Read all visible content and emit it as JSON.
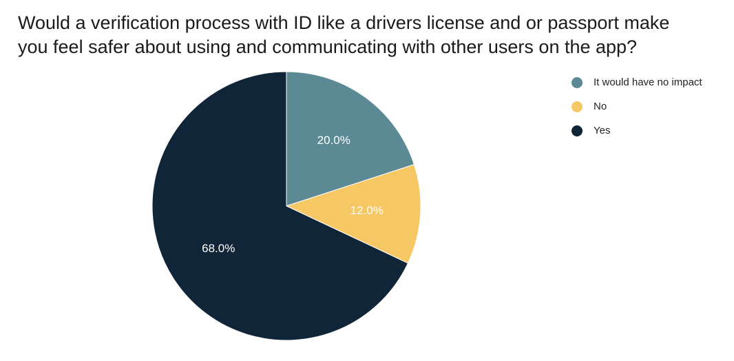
{
  "chart_data": {
    "type": "pie",
    "title_lines": [
      "Would a verification process with ID like a drivers license and or passport make",
      "you feel safer about using and communicating with other users on the app?"
    ],
    "slices": [
      {
        "label": "It would have no impact",
        "value": 20.0,
        "display": "20.0%",
        "color": "#5b8a95"
      },
      {
        "label": "No",
        "value": 12.0,
        "display": "12.0%",
        "color": "#f6c765"
      },
      {
        "label": "Yes",
        "value": 68.0,
        "display": "68.0%",
        "color": "#112538"
      }
    ],
    "legend_position": "top-right",
    "start_angle": "12 o'clock",
    "direction": "clockwise"
  }
}
